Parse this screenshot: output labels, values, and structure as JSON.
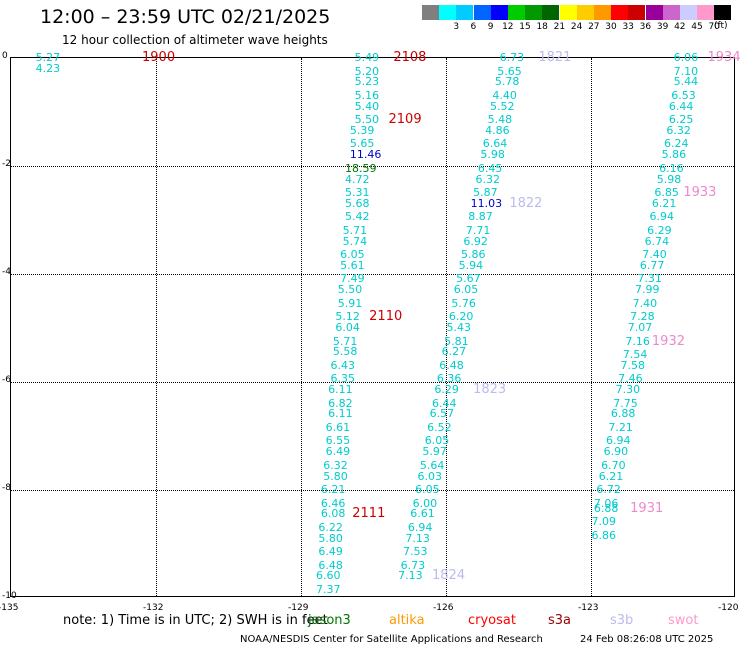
{
  "header": {
    "title": "12:00 – 23:59 UTC 02/21/2025",
    "subtitle": "12 hour collection of altimeter wave heights",
    "units": "(ft)"
  },
  "colorbar": {
    "items": [
      {
        "color": "#7f7f7f",
        "label": ""
      },
      {
        "color": "#00ffff",
        "label": "3"
      },
      {
        "color": "#00ccff",
        "label": "6"
      },
      {
        "color": "#0066ff",
        "label": "9"
      },
      {
        "color": "#0000ff",
        "label": "12"
      },
      {
        "color": "#00cc00",
        "label": "15"
      },
      {
        "color": "#009900",
        "label": "18"
      },
      {
        "color": "#006600",
        "label": "21"
      },
      {
        "color": "#ffff00",
        "label": "24"
      },
      {
        "color": "#ffcc00",
        "label": "27"
      },
      {
        "color": "#ff9900",
        "label": "30"
      },
      {
        "color": "#ff0000",
        "label": "33"
      },
      {
        "color": "#cc0000",
        "label": "36"
      },
      {
        "color": "#990099",
        "label": "39"
      },
      {
        "color": "#cc66cc",
        "label": "42"
      },
      {
        "color": "#ccccff",
        "label": "45"
      },
      {
        "color": "#ff99cc",
        "label": "70"
      },
      {
        "color": "#000000",
        "label": ""
      }
    ]
  },
  "map": {
    "lon_range": [
      -135,
      -120
    ],
    "lat_range": [
      -10,
      0
    ],
    "lon_ticks": [
      {
        "v": -135,
        "label": "-135"
      },
      {
        "v": -132,
        "label": "-132"
      },
      {
        "v": -129,
        "label": "-129"
      },
      {
        "v": -126,
        "label": "-126"
      },
      {
        "v": -123,
        "label": "-123"
      },
      {
        "v": -120,
        "label": "-120"
      }
    ],
    "lat_ticks": [
      {
        "v": 0,
        "label": "0"
      },
      {
        "v": -2,
        "label": "-2"
      },
      {
        "v": -4,
        "label": "-4"
      },
      {
        "v": -6,
        "label": "-6"
      },
      {
        "v": -8,
        "label": "-8"
      },
      {
        "v": -10,
        "label": "-10"
      }
    ]
  },
  "tracks": [
    {
      "color": "#00cccc",
      "points": [
        {
          "lon": -134.2,
          "lat": 0.0,
          "v": "5.27"
        },
        {
          "lon": -134.2,
          "lat": -0.2,
          "v": "4.23"
        }
      ],
      "times": [
        {
          "lon": -132.0,
          "lat": 0.0,
          "t": "1900",
          "color": "#cc0000"
        }
      ]
    },
    {
      "color": "#00cccc",
      "points": [
        {
          "lon": -127.6,
          "lat": 0.0,
          "v": "5.49"
        },
        {
          "lon": -127.6,
          "lat": -0.25,
          "v": "5.20"
        },
        {
          "lon": -127.6,
          "lat": -0.45,
          "v": "5.23"
        },
        {
          "lon": -127.6,
          "lat": -0.7,
          "v": "5.16"
        },
        {
          "lon": -127.6,
          "lat": -0.9,
          "v": "5.40"
        },
        {
          "lon": -127.6,
          "lat": -1.15,
          "v": "5.50"
        },
        {
          "lon": -127.7,
          "lat": -1.35,
          "v": "5.39"
        },
        {
          "lon": -127.7,
          "lat": -1.6,
          "v": "5.65"
        },
        {
          "lon": -127.7,
          "lat": -1.8,
          "v": "11.46",
          "color": "#0000cc"
        },
        {
          "lon": -127.8,
          "lat": -2.05,
          "v": "18.59",
          "color": "#007700"
        },
        {
          "lon": -127.8,
          "lat": -2.25,
          "v": "4.72"
        },
        {
          "lon": -127.8,
          "lat": -2.5,
          "v": "5.31"
        },
        {
          "lon": -127.8,
          "lat": -2.7,
          "v": "5.68"
        },
        {
          "lon": -127.8,
          "lat": -2.95,
          "v": "5.42"
        },
        {
          "lon": -127.85,
          "lat": -3.2,
          "v": "5.71"
        },
        {
          "lon": -127.85,
          "lat": -3.4,
          "v": "5.74"
        },
        {
          "lon": -127.9,
          "lat": -3.65,
          "v": "6.05"
        },
        {
          "lon": -127.9,
          "lat": -3.85,
          "v": "5.61"
        },
        {
          "lon": -127.9,
          "lat": -4.1,
          "v": "7.49"
        },
        {
          "lon": -127.95,
          "lat": -4.3,
          "v": "5.50"
        },
        {
          "lon": -127.95,
          "lat": -4.55,
          "v": "5.91"
        },
        {
          "lon": -128.0,
          "lat": -4.8,
          "v": "5.12"
        },
        {
          "lon": -128.0,
          "lat": -5.0,
          "v": "6.04"
        },
        {
          "lon": -128.05,
          "lat": -5.25,
          "v": "5.71"
        },
        {
          "lon": -128.05,
          "lat": -5.45,
          "v": "5.58"
        },
        {
          "lon": -128.1,
          "lat": -5.7,
          "v": "6.43"
        },
        {
          "lon": -128.1,
          "lat": -5.95,
          "v": "6.35"
        },
        {
          "lon": -128.15,
          "lat": -6.15,
          "v": "6.11"
        },
        {
          "lon": -128.15,
          "lat": -6.4,
          "v": "6.82"
        },
        {
          "lon": -128.15,
          "lat": -6.6,
          "v": "6.11"
        },
        {
          "lon": -128.2,
          "lat": -6.85,
          "v": "6.61"
        },
        {
          "lon": -128.2,
          "lat": -7.1,
          "v": "6.55"
        },
        {
          "lon": -128.2,
          "lat": -7.3,
          "v": "6.49"
        },
        {
          "lon": -128.25,
          "lat": -7.55,
          "v": "6.32"
        },
        {
          "lon": -128.25,
          "lat": -7.75,
          "v": "5.80"
        },
        {
          "lon": -128.3,
          "lat": -8.0,
          "v": "6.21"
        },
        {
          "lon": -128.3,
          "lat": -8.25,
          "v": "6.46"
        },
        {
          "lon": -128.3,
          "lat": -8.45,
          "v": "6.08"
        },
        {
          "lon": -128.35,
          "lat": -8.7,
          "v": "6.22"
        },
        {
          "lon": -128.35,
          "lat": -8.9,
          "v": "5.80"
        },
        {
          "lon": -128.35,
          "lat": -9.15,
          "v": "6.49"
        },
        {
          "lon": -128.35,
          "lat": -9.4,
          "v": "6.48"
        },
        {
          "lon": -128.4,
          "lat": -9.6,
          "v": "6.60"
        },
        {
          "lon": -128.4,
          "lat": -9.85,
          "v": "7.37"
        }
      ],
      "times": [
        {
          "lon": -126.8,
          "lat": 0.0,
          "t": "2108",
          "color": "#cc0000"
        },
        {
          "lon": -126.9,
          "lat": -1.15,
          "t": "2109",
          "color": "#cc0000"
        },
        {
          "lon": -127.3,
          "lat": -4.8,
          "t": "2110",
          "color": "#cc0000"
        },
        {
          "lon": -127.65,
          "lat": -8.45,
          "t": "2111",
          "color": "#cc0000"
        }
      ]
    },
    {
      "color": "#00cccc",
      "points": [
        {
          "lon": -124.6,
          "lat": 0.0,
          "v": "6.73"
        },
        {
          "lon": -124.65,
          "lat": -0.25,
          "v": "5.65"
        },
        {
          "lon": -124.7,
          "lat": -0.45,
          "v": "5.78"
        },
        {
          "lon": -124.75,
          "lat": -0.7,
          "v": "4.40"
        },
        {
          "lon": -124.8,
          "lat": -0.9,
          "v": "5.52"
        },
        {
          "lon": -124.85,
          "lat": -1.15,
          "v": "5.48"
        },
        {
          "lon": -124.9,
          "lat": -1.35,
          "v": "4.86"
        },
        {
          "lon": -124.95,
          "lat": -1.6,
          "v": "6.64"
        },
        {
          "lon": -125.0,
          "lat": -1.8,
          "v": "5.98"
        },
        {
          "lon": -125.05,
          "lat": -2.05,
          "v": "6.45"
        },
        {
          "lon": -125.1,
          "lat": -2.25,
          "v": "6.32"
        },
        {
          "lon": -125.15,
          "lat": -2.5,
          "v": "5.87"
        },
        {
          "lon": -125.2,
          "lat": -2.7,
          "v": "11.03",
          "color": "#0000cc"
        },
        {
          "lon": -125.25,
          "lat": -2.95,
          "v": "8.87"
        },
        {
          "lon": -125.3,
          "lat": -3.2,
          "v": "7.71"
        },
        {
          "lon": -125.35,
          "lat": -3.4,
          "v": "6.92"
        },
        {
          "lon": -125.4,
          "lat": -3.65,
          "v": "5.86"
        },
        {
          "lon": -125.45,
          "lat": -3.85,
          "v": "5.94"
        },
        {
          "lon": -125.5,
          "lat": -4.1,
          "v": "5.67"
        },
        {
          "lon": -125.55,
          "lat": -4.3,
          "v": "6.05"
        },
        {
          "lon": -125.6,
          "lat": -4.55,
          "v": "5.76"
        },
        {
          "lon": -125.65,
          "lat": -4.8,
          "v": "6.20"
        },
        {
          "lon": -125.7,
          "lat": -5.0,
          "v": "5.43"
        },
        {
          "lon": -125.75,
          "lat": -5.25,
          "v": "5.81"
        },
        {
          "lon": -125.8,
          "lat": -5.45,
          "v": "6.27"
        },
        {
          "lon": -125.85,
          "lat": -5.7,
          "v": "6.48"
        },
        {
          "lon": -125.9,
          "lat": -5.95,
          "v": "6.36"
        },
        {
          "lon": -125.95,
          "lat": -6.15,
          "v": "6.29"
        },
        {
          "lon": -126.0,
          "lat": -6.4,
          "v": "6.44"
        },
        {
          "lon": -126.05,
          "lat": -6.6,
          "v": "6.57"
        },
        {
          "lon": -126.1,
          "lat": -6.85,
          "v": "6.52"
        },
        {
          "lon": -126.15,
          "lat": -7.1,
          "v": "6.05"
        },
        {
          "lon": -126.2,
          "lat": -7.3,
          "v": "5.97"
        },
        {
          "lon": -126.25,
          "lat": -7.55,
          "v": "5.64"
        },
        {
          "lon": -126.3,
          "lat": -7.75,
          "v": "6.03"
        },
        {
          "lon": -126.35,
          "lat": -8.0,
          "v": "6.05"
        },
        {
          "lon": -126.4,
          "lat": -8.25,
          "v": "6.00"
        },
        {
          "lon": -126.45,
          "lat": -8.45,
          "v": "6.61"
        },
        {
          "lon": -126.5,
          "lat": -8.7,
          "v": "6.94"
        },
        {
          "lon": -126.55,
          "lat": -8.9,
          "v": "7.13"
        },
        {
          "lon": -126.6,
          "lat": -9.15,
          "v": "7.53"
        },
        {
          "lon": -126.65,
          "lat": -9.4,
          "v": "6.73"
        },
        {
          "lon": -126.7,
          "lat": -9.6,
          "v": "7.13"
        }
      ],
      "times": [
        {
          "lon": -123.8,
          "lat": 0.0,
          "t": "1821",
          "color": "#bbbbee"
        },
        {
          "lon": -124.4,
          "lat": -2.7,
          "t": "1822",
          "color": "#bbbbee"
        },
        {
          "lon": -125.15,
          "lat": -6.15,
          "t": "1823",
          "color": "#bbbbee"
        },
        {
          "lon": -126.0,
          "lat": -9.6,
          "t": "1824",
          "color": "#bbbbee"
        }
      ]
    },
    {
      "color": "#00cccc",
      "points": [
        {
          "lon": -121.0,
          "lat": 0.0,
          "v": "6.06"
        },
        {
          "lon": -121.0,
          "lat": -0.25,
          "v": "7.10"
        },
        {
          "lon": -121.0,
          "lat": -0.45,
          "v": "5.44"
        },
        {
          "lon": -121.05,
          "lat": -0.7,
          "v": "6.53"
        },
        {
          "lon": -121.1,
          "lat": -0.9,
          "v": "6.44"
        },
        {
          "lon": -121.1,
          "lat": -1.15,
          "v": "6.25"
        },
        {
          "lon": -121.15,
          "lat": -1.35,
          "v": "6.32"
        },
        {
          "lon": -121.2,
          "lat": -1.6,
          "v": "6.24"
        },
        {
          "lon": -121.25,
          "lat": -1.8,
          "v": "5.86"
        },
        {
          "lon": -121.3,
          "lat": -2.05,
          "v": "6.16"
        },
        {
          "lon": -121.35,
          "lat": -2.25,
          "v": "5.98"
        },
        {
          "lon": -121.4,
          "lat": -2.5,
          "v": "6.85"
        },
        {
          "lon": -121.45,
          "lat": -2.7,
          "v": "6.21"
        },
        {
          "lon": -121.5,
          "lat": -2.95,
          "v": "6.94"
        },
        {
          "lon": -121.55,
          "lat": -3.2,
          "v": "6.29"
        },
        {
          "lon": -121.6,
          "lat": -3.4,
          "v": "6.74"
        },
        {
          "lon": -121.65,
          "lat": -3.65,
          "v": "7.40"
        },
        {
          "lon": -121.7,
          "lat": -3.85,
          "v": "6.77"
        },
        {
          "lon": -121.75,
          "lat": -4.1,
          "v": "7.31"
        },
        {
          "lon": -121.8,
          "lat": -4.3,
          "v": "7.99"
        },
        {
          "lon": -121.85,
          "lat": -4.55,
          "v": "7.40"
        },
        {
          "lon": -121.9,
          "lat": -4.8,
          "v": "7.28"
        },
        {
          "lon": -121.95,
          "lat": -5.0,
          "v": "7.07"
        },
        {
          "lon": -122.0,
          "lat": -5.25,
          "v": "7.16"
        },
        {
          "lon": -122.05,
          "lat": -5.5,
          "v": "7.54"
        },
        {
          "lon": -122.1,
          "lat": -5.7,
          "v": "7.58"
        },
        {
          "lon": -122.15,
          "lat": -5.95,
          "v": "7.46"
        },
        {
          "lon": -122.2,
          "lat": -6.15,
          "v": "7.30"
        },
        {
          "lon": -122.25,
          "lat": -6.4,
          "v": "7.75"
        },
        {
          "lon": -122.3,
          "lat": -6.6,
          "v": "6.88"
        },
        {
          "lon": -122.35,
          "lat": -6.85,
          "v": "7.21"
        },
        {
          "lon": -122.4,
          "lat": -7.1,
          "v": "6.94"
        },
        {
          "lon": -122.45,
          "lat": -7.3,
          "v": "6.90"
        },
        {
          "lon": -122.5,
          "lat": -7.55,
          "v": "6.70"
        },
        {
          "lon": -122.55,
          "lat": -7.75,
          "v": "6.21"
        },
        {
          "lon": -122.6,
          "lat": -8.0,
          "v": "6.72"
        },
        {
          "lon": -122.65,
          "lat": -8.25,
          "v": "7.06"
        },
        {
          "lon": -122.65,
          "lat": -8.35,
          "v": "6.88"
        },
        {
          "lon": -122.7,
          "lat": -8.6,
          "v": "7.09"
        },
        {
          "lon": -122.7,
          "lat": -8.85,
          "v": "6.86"
        }
      ],
      "times": [
        {
          "lon": -120.3,
          "lat": 0.0,
          "t": "1934",
          "color": "#ee88cc"
        },
        {
          "lon": -120.8,
          "lat": -2.5,
          "t": "1933",
          "color": "#ee88cc"
        },
        {
          "lon": -121.45,
          "lat": -5.25,
          "t": "1932",
          "color": "#ee88cc"
        },
        {
          "lon": -121.9,
          "lat": -8.35,
          "t": "1931",
          "color": "#ee88cc"
        }
      ]
    }
  ],
  "footer": {
    "note": "note:  1) Time is in UTC; 2) SWH is in feet",
    "satellites": [
      {
        "name": "jason3",
        "color": "#007700"
      },
      {
        "name": "altika",
        "color": "#ff9900"
      },
      {
        "name": "cryosat",
        "color": "#ff0000"
      },
      {
        "name": "s3a",
        "color": "#990000"
      },
      {
        "name": "s3b",
        "color": "#bbbbee"
      },
      {
        "name": "swot",
        "color": "#ff99cc"
      }
    ],
    "credit": "NOAA/NESDIS Center for Satellite Applications and Research",
    "stamp": "24 Feb 08:26:08 UTC 2025"
  }
}
